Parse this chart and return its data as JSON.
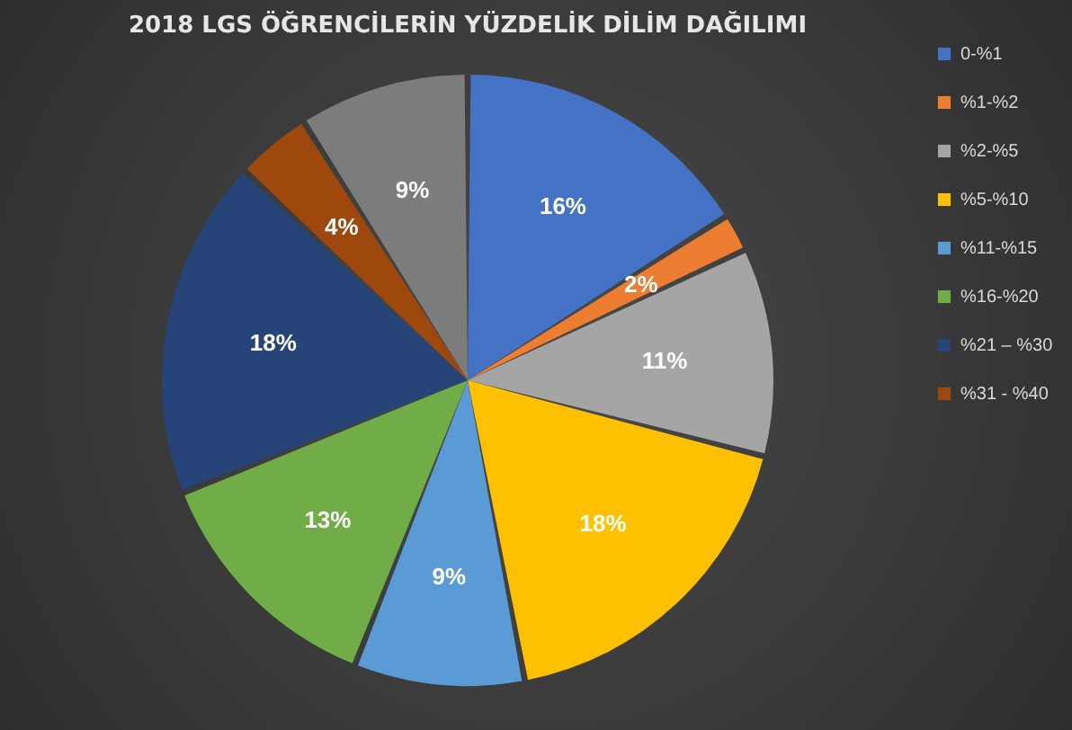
{
  "chart_data": {
    "type": "pie",
    "title": "2018 LGS ÖĞRENCİLERİN YÜZDELİK DİLİM DAĞILIMI",
    "categories": [
      "0-%1",
      "%1-%2",
      "%2-%5",
      "%5-%10",
      "%11-%15",
      "%16-%20",
      "%21 – %30",
      "%31 - %40",
      null
    ],
    "values": [
      16,
      2,
      11,
      18,
      9,
      13,
      18,
      4,
      9
    ],
    "value_labels": [
      "16%",
      "2%",
      "11%",
      "18%",
      "9%",
      "13%",
      "18%",
      "4%",
      "9%"
    ],
    "colors": [
      "#4472c4",
      "#ed7d31",
      "#a5a5a5",
      "#ffc000",
      "#5b9bd5",
      "#70ad47",
      "#264478",
      "#9e480e",
      "#7c7c7c"
    ],
    "legend": "right"
  }
}
